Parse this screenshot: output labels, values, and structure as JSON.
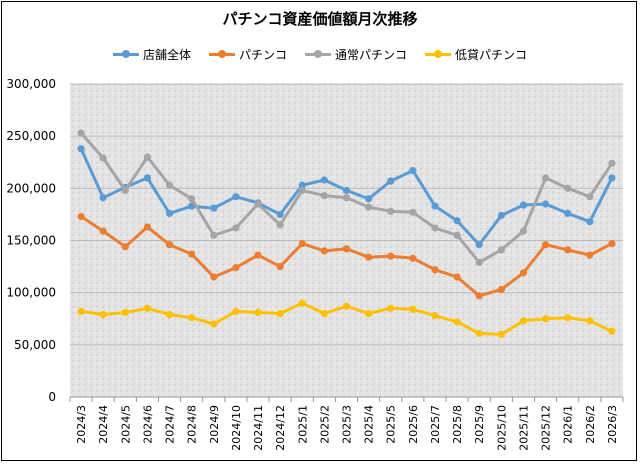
{
  "chart_data": {
    "type": "line",
    "title": "パチンコ資産価値額月次推移",
    "xlabel": "",
    "ylabel": "",
    "ylim": [
      0,
      300000
    ],
    "yticks": [
      0,
      50000,
      100000,
      150000,
      200000,
      250000,
      300000
    ],
    "ytick_labels": [
      "0",
      "50,000",
      "100,000",
      "150,000",
      "200,000",
      "250,000",
      "300,000"
    ],
    "grid": true,
    "legend_position": "top",
    "categories": [
      "2024/3",
      "2024/4",
      "2024/5",
      "2024/6",
      "2024/7",
      "2024/8",
      "2024/9",
      "2024/10",
      "2024/11",
      "2024/12",
      "2025/1",
      "2025/2",
      "2025/3",
      "2025/4",
      "2025/5",
      "2025/6",
      "2025/7",
      "2025/8",
      "2025/9",
      "2025/10",
      "2025/11",
      "2025/12",
      "2026/1",
      "2026/2",
      "2026/3"
    ],
    "series": [
      {
        "name": "店舗全体",
        "color": "#5B9BD5",
        "values": [
          238000,
          191000,
          201000,
          210000,
          176000,
          183000,
          181000,
          192000,
          186000,
          175000,
          203000,
          208000,
          198000,
          190000,
          207000,
          217000,
          183000,
          169000,
          146000,
          174000,
          184000,
          185000,
          176000,
          168000,
          210000
        ]
      },
      {
        "name": "パチンコ",
        "color": "#ED7D31",
        "values": [
          173000,
          159000,
          144000,
          163000,
          146000,
          137000,
          115000,
          124000,
          136000,
          125000,
          147000,
          140000,
          142000,
          134000,
          135000,
          133000,
          122000,
          115000,
          97000,
          103000,
          119000,
          146000,
          141000,
          136000,
          147000
        ]
      },
      {
        "name": "通常パチンコ",
        "color": "#A5A5A5",
        "values": [
          253000,
          229000,
          198000,
          230000,
          203000,
          190000,
          155000,
          162000,
          185000,
          165000,
          198000,
          193000,
          191000,
          182000,
          178000,
          177000,
          162000,
          155000,
          129000,
          141000,
          159000,
          210000,
          200000,
          192000,
          224000
        ]
      },
      {
        "name": "低貸パチンコ",
        "color": "#FFC000",
        "values": [
          82000,
          79000,
          81000,
          85000,
          79000,
          76000,
          70000,
          82000,
          81000,
          80000,
          90000,
          80000,
          87000,
          80000,
          85000,
          84000,
          78000,
          72000,
          61000,
          60000,
          73000,
          75000,
          76000,
          73000,
          63000
        ]
      }
    ]
  }
}
